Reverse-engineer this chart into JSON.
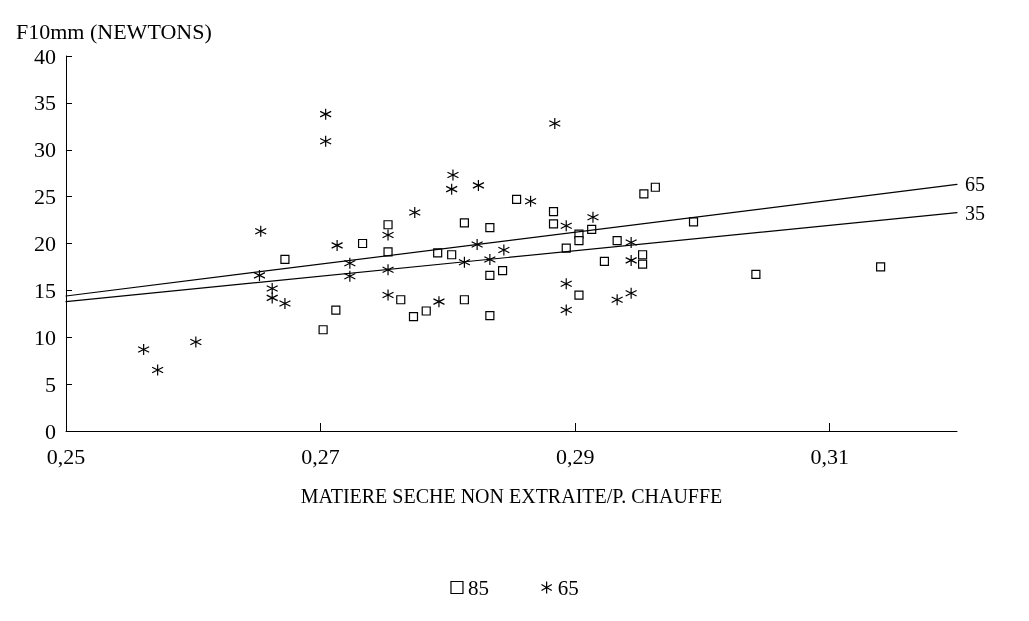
{
  "chart_data": {
    "type": "scatter",
    "xlabel": "MATIERE SECHE NON EXTRAITE/P. CHAUFFE",
    "ylabel": "F10mm (NEWTONS)",
    "xlim": [
      0.25,
      0.32
    ],
    "xticks": [
      {
        "value": 0.25,
        "label": "0,25"
      },
      {
        "value": 0.27,
        "label": "0,27"
      },
      {
        "value": 0.29,
        "label": "0,29"
      },
      {
        "value": 0.31,
        "label": "0,31"
      }
    ],
    "ylim": [
      0,
      40
    ],
    "yticks": [
      0,
      5,
      10,
      15,
      20,
      25,
      30,
      35,
      40
    ],
    "grid": false,
    "legend": "bottom",
    "series": [
      {
        "name": "85",
        "marker": "square",
        "color": "#000000",
        "x": [
          0.2672,
          0.2733,
          0.2712,
          0.2702,
          0.2753,
          0.2753,
          0.2813,
          0.2833,
          0.2854,
          0.2883,
          0.2883,
          0.2903,
          0.2903,
          0.2913,
          0.2933,
          0.2954,
          0.2963,
          0.2792,
          0.2803,
          0.2893,
          0.2923,
          0.2953,
          0.2953,
          0.2833,
          0.2843,
          0.2763,
          0.2783,
          0.2773,
          0.2813,
          0.2833,
          0.2903,
          0.2993,
          0.3042,
          0.314
        ],
        "values": [
          18.3,
          20.0,
          12.9,
          10.8,
          22.0,
          19.1,
          22.2,
          21.7,
          24.7,
          23.4,
          22.1,
          21.0,
          20.3,
          21.5,
          20.3,
          25.3,
          26.0,
          19.0,
          18.8,
          19.5,
          18.1,
          18.8,
          17.8,
          16.6,
          17.1,
          14.0,
          12.8,
          12.2,
          14.0,
          12.3,
          14.5,
          22.3,
          16.7,
          17.5
        ]
      },
      {
        "name": "65",
        "marker": "cross",
        "color": "#000000",
        "x": [
          0.2704,
          0.2704,
          0.2653,
          0.2713,
          0.2723,
          0.2723,
          0.2652,
          0.2662,
          0.2662,
          0.2672,
          0.2561,
          0.2572,
          0.2602,
          0.2884,
          0.2804,
          0.2803,
          0.2824,
          0.2865,
          0.2774,
          0.2753,
          0.2893,
          0.2914,
          0.2823,
          0.2844,
          0.2944,
          0.2753,
          0.2813,
          0.2833,
          0.2944,
          0.2753,
          0.2793,
          0.2893,
          0.2893,
          0.2933,
          0.2944
        ],
        "values": [
          33.8,
          30.9,
          21.3,
          19.8,
          17.9,
          16.5,
          16.6,
          15.2,
          14.2,
          13.6,
          8.7,
          6.5,
          9.5,
          32.8,
          27.3,
          25.8,
          26.2,
          24.5,
          23.3,
          20.9,
          21.9,
          22.8,
          19.9,
          19.3,
          20.1,
          17.2,
          18.0,
          18.3,
          18.2,
          14.5,
          13.8,
          15.7,
          12.9,
          14.0,
          14.7
        ]
      },
      {
        "name": "65",
        "type": "line",
        "marker": "none",
        "color": "#000000",
        "x": [
          0.25,
          0.32
        ],
        "values": [
          14.4,
          26.3
        ]
      },
      {
        "name": "35",
        "type": "line",
        "marker": "none",
        "color": "#000000",
        "x": [
          0.25,
          0.32
        ],
        "values": [
          13.8,
          23.3
        ]
      }
    ]
  }
}
